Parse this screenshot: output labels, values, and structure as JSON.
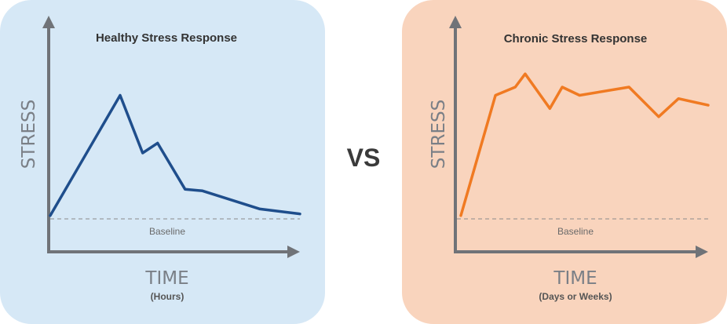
{
  "vs_label": "VS",
  "colors": {
    "healthy_bg": "#d6e8f6",
    "chronic_bg": "#f9d4bd",
    "healthy_line": "#1f4e8c",
    "chronic_line": "#f07a22",
    "axis": "#707378",
    "baseline": "#8a8a8a"
  },
  "chart_data": [
    {
      "type": "line",
      "title": "Healthy Stress Response",
      "xlabel": "TIME",
      "xlabel_sub": "(Hours)",
      "ylabel": "STRESS",
      "baseline_label": "Baseline",
      "ylim": [
        0,
        100
      ],
      "xlim": [
        0,
        100
      ],
      "grid": false,
      "axis_ticks": "none",
      "series": [
        {
          "x": [
            0,
            28,
            37,
            43,
            54,
            61,
            84,
            100
          ],
          "y": [
            2,
            75,
            40,
            46,
            18,
            17,
            6,
            3
          ]
        }
      ]
    },
    {
      "type": "line",
      "title": "Chronic Stress Response",
      "xlabel": "TIME",
      "xlabel_sub": "(Days or Weeks)",
      "ylabel": "STRESS",
      "baseline_label": "Baseline",
      "ylim": [
        0,
        100
      ],
      "xlim": [
        0,
        100
      ],
      "grid": false,
      "axis_ticks": "none",
      "series": [
        {
          "x": [
            0,
            14,
            22,
            26,
            36,
            41,
            48,
            68,
            80,
            88,
            100
          ],
          "y": [
            2,
            75,
            80,
            88,
            67,
            80,
            75,
            80,
            62,
            73,
            69
          ]
        }
      ]
    }
  ]
}
